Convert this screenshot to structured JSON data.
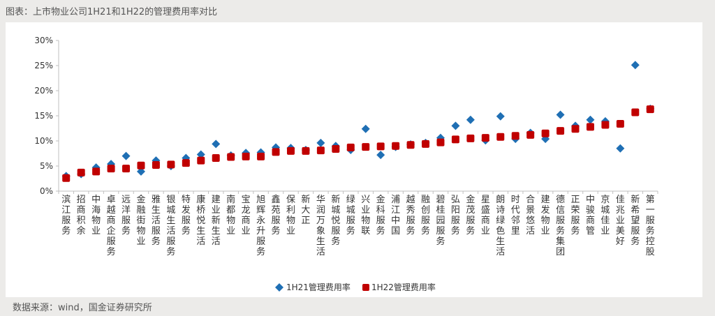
{
  "header": {
    "title": "图表：上市物业公司1H21和1H22的管理费用率对比"
  },
  "footer": {
    "source": "数据来源：wind，国金证券研究所"
  },
  "colors": {
    "s1": "#1f6fb4",
    "s2": "#c00000",
    "axis": "#bfbfbf",
    "text": "#333333"
  },
  "chart_data": {
    "type": "scatter",
    "title": "",
    "xlabel": "",
    "ylabel": "",
    "ylim": [
      0,
      0.3
    ],
    "yticks": [
      "0%",
      "5%",
      "10%",
      "15%",
      "20%",
      "25%",
      "30%"
    ],
    "grid": false,
    "legend_position": "bottom",
    "categories": [
      "滨江服务",
      "招商积余",
      "中海物业",
      "卓越商企服务",
      "远洋服务",
      "金融街物业",
      "雅生活服务",
      "银城生活服务",
      "特发服务",
      "康桥悦生活",
      "建业新生活",
      "南都物业",
      "宝龙商业",
      "旭辉永升服务",
      "鑫苑服务",
      "保利物业",
      "新大正",
      "华润万象生活",
      "新城悦服务",
      "绿城服务",
      "兴业物联",
      "金科服务",
      "浦江中国",
      "越秀服务",
      "融创服务",
      "碧桂园服务",
      "弘阳服务",
      "金茂服务",
      "星盛商业",
      "朗诗绿色生活",
      "时代邻里",
      "合景悠活",
      "建发物业",
      "德信服务集团",
      "正荣服务",
      "中骏商管",
      "京城佳业",
      "佳兆业美好",
      "新希望服务",
      "第一服务控股"
    ],
    "series": [
      {
        "name": "1H21管理费用率",
        "marker": "diamond",
        "values": [
          0.03,
          0.034,
          0.047,
          0.054,
          0.07,
          0.039,
          0.061,
          0.05,
          0.066,
          0.073,
          0.094,
          0.071,
          0.076,
          0.077,
          0.087,
          0.086,
          0.082,
          0.096,
          0.09,
          0.082,
          0.124,
          0.072,
          0.088,
          0.093,
          0.096,
          0.106,
          0.13,
          0.142,
          0.101,
          0.149,
          0.104,
          0.116,
          0.104,
          0.152,
          0.13,
          0.142,
          0.139,
          0.085,
          0.251,
          0.164
        ]
      },
      {
        "name": "1H22管理费用率",
        "marker": "square",
        "values": [
          0.026,
          0.037,
          0.039,
          0.045,
          0.045,
          0.051,
          0.052,
          0.053,
          0.056,
          0.061,
          0.066,
          0.068,
          0.069,
          0.069,
          0.078,
          0.08,
          0.08,
          0.081,
          0.084,
          0.087,
          0.088,
          0.089,
          0.09,
          0.092,
          0.094,
          0.097,
          0.103,
          0.105,
          0.106,
          0.108,
          0.11,
          0.112,
          0.115,
          0.12,
          0.124,
          0.128,
          0.132,
          0.134,
          0.157,
          0.163
        ]
      }
    ]
  }
}
